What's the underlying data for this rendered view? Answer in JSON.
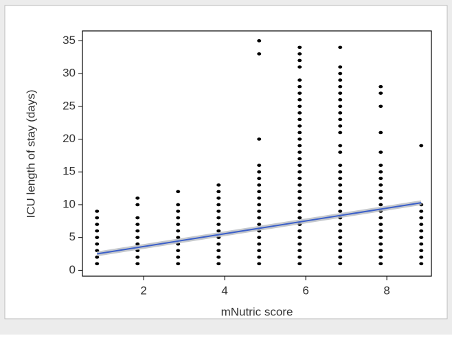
{
  "chart_data": {
    "type": "scatter",
    "xlabel": "mNutric score",
    "ylabel": "ICU length of stay (days)",
    "xlim": [
      0.49,
      9.1
    ],
    "ylim": [
      -0.9,
      36.5
    ],
    "xticks": [
      2,
      4,
      6,
      8
    ],
    "yticks": [
      0,
      5,
      10,
      15,
      20,
      25,
      30,
      35
    ],
    "color": "#000000",
    "x": [
      0.85,
      0.85,
      0.85,
      0.85,
      0.85,
      0.85,
      0.85,
      0.85,
      0.85,
      1.85,
      1.85,
      1.85,
      1.85,
      1.85,
      1.85,
      1.85,
      1.85,
      1.85,
      1.85,
      2.85,
      2.85,
      2.85,
      2.85,
      2.85,
      2.85,
      2.85,
      2.85,
      2.85,
      2.85,
      2.85,
      3.85,
      3.85,
      3.85,
      3.85,
      3.85,
      3.85,
      3.85,
      3.85,
      3.85,
      3.85,
      3.85,
      3.85,
      3.85,
      4.85,
      4.85,
      4.85,
      4.85,
      4.85,
      4.85,
      4.85,
      4.85,
      4.85,
      4.85,
      4.85,
      4.85,
      4.85,
      4.85,
      4.85,
      4.85,
      4.85,
      4.85,
      4.85,
      5.85,
      5.85,
      5.85,
      5.85,
      5.85,
      5.85,
      5.85,
      5.85,
      5.85,
      5.85,
      5.85,
      5.85,
      5.85,
      5.85,
      5.85,
      5.85,
      5.85,
      5.85,
      5.85,
      5.85,
      5.85,
      5.85,
      5.85,
      5.85,
      5.85,
      5.85,
      5.85,
      5.85,
      5.85,
      5.85,
      5.85,
      5.85,
      5.85,
      6.85,
      6.85,
      6.85,
      6.85,
      6.85,
      6.85,
      6.85,
      6.85,
      6.85,
      6.85,
      6.85,
      6.85,
      6.85,
      6.85,
      6.85,
      6.85,
      6.85,
      6.85,
      6.85,
      6.85,
      6.85,
      6.85,
      6.85,
      6.85,
      6.85,
      6.85,
      6.85,
      6.85,
      6.85,
      6.85,
      7.85,
      7.85,
      7.85,
      7.85,
      7.85,
      7.85,
      7.85,
      7.85,
      7.85,
      7.85,
      7.85,
      7.85,
      7.85,
      7.85,
      7.85,
      7.85,
      7.85,
      7.85,
      7.85,
      7.85,
      7.85,
      8.85,
      8.85,
      8.85,
      8.85,
      8.85,
      8.85,
      8.85,
      8.85,
      8.85,
      8.85,
      8.85
    ],
    "values": [
      1,
      2,
      3,
      4,
      5,
      6,
      7,
      8,
      9,
      1,
      2,
      3,
      4,
      5,
      6,
      7,
      8,
      10,
      11,
      1,
      2,
      3,
      4,
      5,
      6,
      7,
      8,
      9,
      10,
      12,
      1,
      2,
      3,
      4,
      5,
      6,
      7,
      8,
      9,
      10,
      11,
      12,
      13,
      1,
      2,
      3,
      4,
      5,
      6,
      7,
      8,
      9,
      10,
      11,
      12,
      13,
      14,
      15,
      16,
      20,
      33,
      35,
      1,
      2,
      3,
      4,
      5,
      6,
      7,
      8,
      9,
      10,
      11,
      12,
      13,
      14,
      15,
      16,
      17,
      18,
      19,
      20,
      21,
      22,
      23,
      24,
      25,
      26,
      27,
      28,
      29,
      31,
      32,
      33,
      34,
      1,
      2,
      3,
      4,
      5,
      6,
      7,
      8,
      9,
      10,
      11,
      12,
      13,
      14,
      15,
      16,
      18,
      19,
      21,
      22,
      23,
      24,
      25,
      26,
      27,
      28,
      29,
      30,
      31,
      34,
      1,
      2,
      3,
      4,
      5,
      6,
      7,
      8,
      9,
      10,
      11,
      12,
      13,
      14,
      15,
      16,
      18,
      21,
      25,
      27,
      28,
      1,
      2,
      3,
      4,
      5,
      6,
      7,
      8,
      9,
      10,
      19
    ],
    "fit": {
      "type": "line",
      "x": [
        0.85,
        8.85
      ],
      "values": [
        2.5,
        10.3
      ],
      "color": "#3b5fc9",
      "band_color": "#b8bcc0"
    }
  }
}
